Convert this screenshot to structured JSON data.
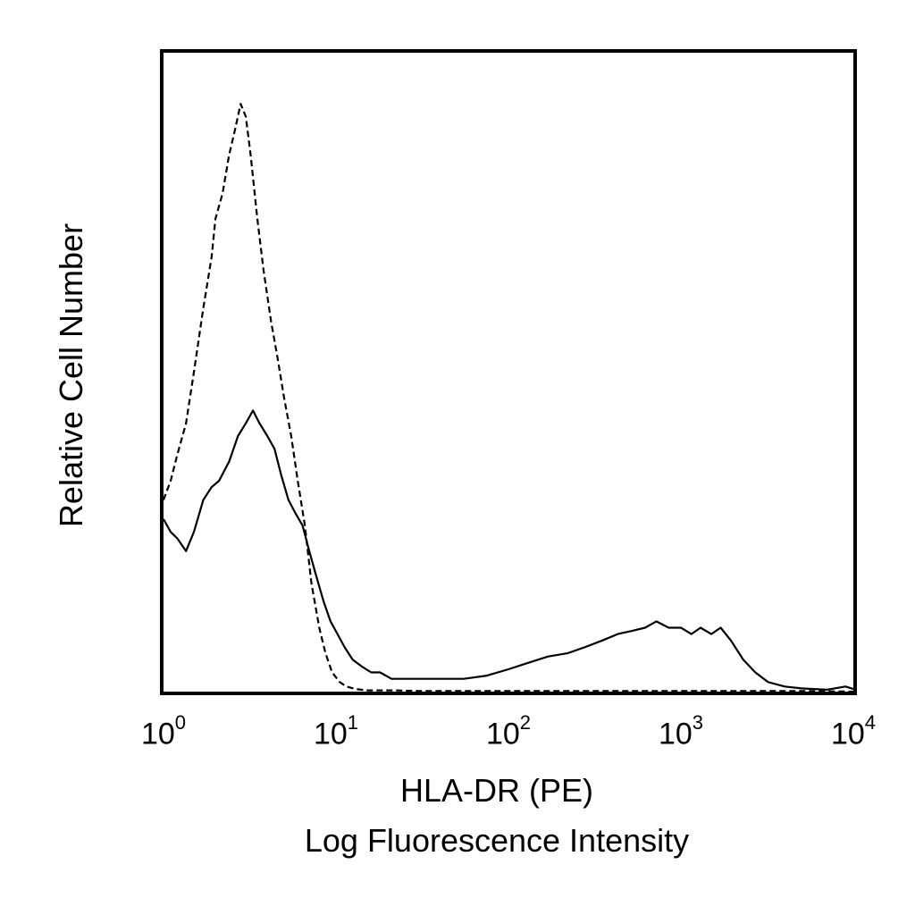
{
  "chart_data": {
    "type": "line",
    "title": "",
    "xlabel": [
      "HLA-DR (PE)",
      "Log Fluorescence Intensity"
    ],
    "ylabel": "Relative Cell Number",
    "xscale": "log",
    "xlim": [
      1,
      10000
    ],
    "ylim": [
      0,
      1
    ],
    "grid": false,
    "legend": "none",
    "xticks": [
      {
        "base": "10",
        "exp": "0"
      },
      {
        "base": "10",
        "exp": "1"
      },
      {
        "base": "10",
        "exp": "2"
      },
      {
        "base": "10",
        "exp": "3"
      },
      {
        "base": "10",
        "exp": "4"
      }
    ],
    "series": [
      {
        "style": "dashed",
        "color": "#000000",
        "x": [
          1.0,
          1.1,
          1.2,
          1.35,
          1.5,
          1.7,
          1.9,
          2.0,
          2.2,
          2.4,
          2.6,
          2.8,
          3.0,
          3.2,
          3.5,
          3.8,
          4.2,
          4.6,
          5.0,
          5.5,
          6.0,
          6.6,
          7.2,
          8.0,
          8.7,
          9.5,
          10.5,
          11.5,
          13,
          15,
          18,
          22,
          30,
          50,
          100,
          200,
          500,
          1000,
          2000,
          5000,
          10000
        ],
        "y": [
          0.3,
          0.33,
          0.37,
          0.42,
          0.5,
          0.6,
          0.68,
          0.74,
          0.78,
          0.84,
          0.88,
          0.92,
          0.9,
          0.84,
          0.74,
          0.66,
          0.58,
          0.52,
          0.46,
          0.4,
          0.33,
          0.26,
          0.17,
          0.1,
          0.06,
          0.03,
          0.015,
          0.008,
          0.004,
          0.002,
          0.002,
          0.002,
          0.001,
          0.001,
          0.001,
          0.001,
          0.001,
          0.001,
          0.001,
          0.001,
          0.0
        ]
      },
      {
        "style": "solid",
        "color": "#000000",
        "x": [
          1.0,
          1.1,
          1.2,
          1.35,
          1.5,
          1.7,
          1.9,
          2.1,
          2.4,
          2.7,
          3.0,
          3.3,
          3.6,
          4.0,
          4.4,
          4.8,
          5.3,
          5.8,
          6.4,
          7.0,
          7.7,
          8.5,
          9.3,
          10.2,
          11.2,
          12.5,
          14,
          16,
          18,
          21,
          25,
          30,
          40,
          55,
          75,
          100,
          130,
          170,
          220,
          280,
          350,
          430,
          520,
          620,
          720,
          850,
          1000,
          1150,
          1300,
          1500,
          1700,
          1950,
          2300,
          2700,
          3200,
          4000,
          5000,
          7000,
          9000,
          10000
        ],
        "y": [
          0.27,
          0.25,
          0.24,
          0.22,
          0.25,
          0.3,
          0.32,
          0.33,
          0.36,
          0.4,
          0.42,
          0.44,
          0.42,
          0.4,
          0.38,
          0.34,
          0.3,
          0.28,
          0.26,
          0.22,
          0.18,
          0.14,
          0.11,
          0.09,
          0.07,
          0.05,
          0.04,
          0.03,
          0.03,
          0.02,
          0.02,
          0.02,
          0.02,
          0.02,
          0.025,
          0.035,
          0.045,
          0.055,
          0.06,
          0.07,
          0.08,
          0.09,
          0.095,
          0.1,
          0.11,
          0.1,
          0.1,
          0.09,
          0.1,
          0.09,
          0.1,
          0.08,
          0.05,
          0.03,
          0.015,
          0.008,
          0.005,
          0.003,
          0.008,
          0.004
        ]
      }
    ]
  }
}
